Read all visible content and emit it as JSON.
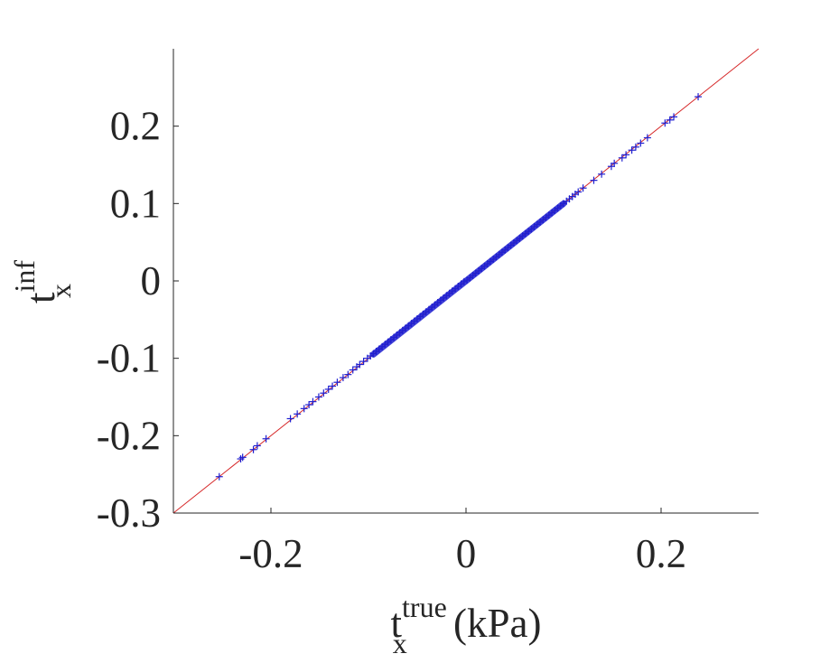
{
  "chart_data": {
    "type": "scatter",
    "title": "",
    "xlabel": {
      "base": "t",
      "superscript": "true",
      "subscript": "x",
      "suffix": " (kPa)"
    },
    "ylabel": {
      "base": "t",
      "superscript": "inf",
      "subscript": "x"
    },
    "xlim": [
      -0.3,
      0.3
    ],
    "ylim": [
      -0.3,
      0.3
    ],
    "xticks": [
      -0.2,
      0,
      0.2
    ],
    "xtick_labels": [
      "-0.2",
      "0",
      "0.2"
    ],
    "yticks": [
      -0.3,
      -0.2,
      -0.1,
      0,
      0.1,
      0.2
    ],
    "ytick_labels": [
      "-0.3",
      "-0.2",
      "-0.1",
      "0",
      "0.1",
      "0.2"
    ],
    "grid": false,
    "reference_line": {
      "x": [
        -0.3,
        0.3
      ],
      "y": [
        -0.3,
        0.3
      ],
      "color": "#d62728"
    },
    "marker_color": "#1f1fd0",
    "series": [
      {
        "marker": "+",
        "x": [
          -0.253,
          -0.231,
          -0.229,
          -0.218,
          -0.214,
          -0.205,
          -0.18,
          -0.173,
          -0.166,
          -0.161,
          -0.157,
          -0.151,
          -0.146,
          -0.141,
          -0.137,
          -0.132,
          -0.126,
          -0.121,
          -0.116,
          -0.112,
          -0.109,
          -0.105,
          -0.101,
          -0.098,
          -0.095,
          -0.092,
          -0.089,
          -0.086,
          -0.083,
          -0.08,
          -0.077,
          -0.074,
          -0.071,
          -0.068,
          -0.065,
          -0.062,
          -0.059,
          -0.056,
          -0.053,
          -0.05,
          -0.047,
          -0.044,
          -0.041,
          -0.038,
          -0.035,
          -0.032,
          -0.029,
          -0.026,
          -0.023,
          -0.02,
          -0.017,
          -0.014,
          -0.011,
          -0.008,
          -0.005,
          -0.002,
          0.001,
          0.004,
          0.007,
          0.01,
          0.013,
          0.016,
          0.019,
          0.022,
          0.025,
          0.028,
          0.031,
          0.034,
          0.037,
          0.04,
          0.043,
          0.046,
          0.049,
          0.052,
          0.055,
          0.058,
          0.061,
          0.064,
          0.067,
          0.07,
          0.073,
          0.076,
          0.079,
          0.082,
          0.085,
          0.088,
          0.091,
          0.094,
          0.097,
          0.1,
          0.103,
          0.106,
          0.109,
          0.112,
          0.115,
          0.12,
          0.131,
          0.139,
          0.149,
          0.152,
          0.16,
          0.164,
          0.17,
          0.174,
          0.179,
          0.186,
          0.204,
          0.209,
          0.213,
          0.238
        ],
        "y": [
          -0.253,
          -0.23,
          -0.228,
          -0.218,
          -0.213,
          -0.204,
          -0.178,
          -0.172,
          -0.165,
          -0.16,
          -0.156,
          -0.15,
          -0.145,
          -0.14,
          -0.136,
          -0.131,
          -0.125,
          -0.121,
          -0.115,
          -0.111,
          -0.108,
          -0.104,
          -0.1,
          -0.097,
          -0.094,
          -0.091,
          -0.088,
          -0.085,
          -0.082,
          -0.079,
          -0.076,
          -0.073,
          -0.07,
          -0.067,
          -0.064,
          -0.061,
          -0.058,
          -0.055,
          -0.052,
          -0.049,
          -0.046,
          -0.043,
          -0.04,
          -0.037,
          -0.034,
          -0.031,
          -0.028,
          -0.025,
          -0.022,
          -0.019,
          -0.016,
          -0.013,
          -0.01,
          -0.007,
          -0.004,
          -0.001,
          0.001,
          0.004,
          0.007,
          0.01,
          0.013,
          0.016,
          0.019,
          0.022,
          0.025,
          0.028,
          0.031,
          0.034,
          0.037,
          0.04,
          0.043,
          0.046,
          0.049,
          0.052,
          0.055,
          0.058,
          0.061,
          0.064,
          0.067,
          0.07,
          0.073,
          0.076,
          0.079,
          0.082,
          0.085,
          0.088,
          0.091,
          0.094,
          0.097,
          0.1,
          0.103,
          0.106,
          0.109,
          0.112,
          0.115,
          0.12,
          0.13,
          0.138,
          0.148,
          0.152,
          0.159,
          0.163,
          0.169,
          0.173,
          0.178,
          0.185,
          0.204,
          0.208,
          0.212,
          0.238
        ]
      }
    ]
  }
}
